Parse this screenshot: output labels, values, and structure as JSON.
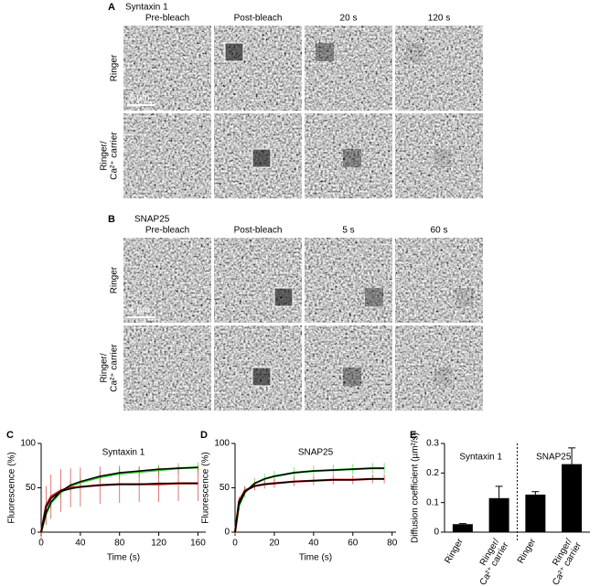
{
  "panels": [
    {
      "letter": "A",
      "protein": "Syntaxin 1",
      "columns": [
        "Pre-bleach",
        "Post-bleach",
        "20 s",
        "120 s"
      ],
      "rows": [
        [
          "Ringer"
        ],
        [
          "Ringer/",
          "Ca²⁺ carrier"
        ]
      ],
      "scale_bar": "4 µm"
    },
    {
      "letter": "B",
      "protein": "SNAP25",
      "columns": [
        "Pre-bleach",
        "Post-bleach",
        "5 s",
        "60 s"
      ],
      "rows": [
        [
          "Ringer"
        ],
        [
          "Ringer/",
          "Ca²⁺ carrier"
        ]
      ],
      "scale_bar": "4 µm"
    }
  ],
  "chart_data": [
    {
      "type": "line",
      "letter": "C",
      "title": "Syntaxin 1",
      "x_label": "Time (s)",
      "y_label": "Fluorescence (%)",
      "x": [
        0,
        5,
        10,
        20,
        30,
        40,
        60,
        80,
        100,
        120,
        140,
        160
      ],
      "series": [
        {
          "color": "#22cc22",
          "values": [
            0,
            20,
            33,
            45,
            52,
            56,
            62,
            66,
            68,
            70,
            72,
            73
          ],
          "errors": [
            3,
            5,
            6,
            6,
            6,
            6,
            6,
            6,
            6,
            6,
            6,
            6
          ]
        },
        {
          "color": "#cc1111",
          "values": [
            0,
            30,
            40,
            47,
            50,
            51,
            53,
            54,
            54,
            54,
            55,
            55
          ],
          "errors": [
            8,
            22,
            25,
            24,
            22,
            22,
            21,
            21,
            20,
            20,
            20,
            20
          ]
        },
        {
          "color": "#000000",
          "values": [
            0,
            22,
            34,
            46,
            53,
            57,
            63,
            67,
            69,
            71,
            72,
            73
          ]
        },
        {
          "color": "#000000",
          "values": [
            0,
            28,
            38,
            46,
            49,
            51,
            53,
            54,
            54,
            55,
            55,
            55
          ]
        }
      ],
      "xlim": [
        0,
        168
      ],
      "xticks": [
        0,
        40,
        80,
        120,
        160
      ],
      "ylim": [
        0,
        100
      ],
      "yticks": [
        0,
        50,
        100
      ]
    },
    {
      "type": "line",
      "letter": "D",
      "title": "SNAP25",
      "x_label": "Time (s)",
      "y_label": "Fluorescence (%)",
      "x": [
        0,
        2,
        5,
        10,
        15,
        20,
        30,
        40,
        50,
        60,
        70,
        76
      ],
      "series": [
        {
          "color": "#22cc22",
          "values": [
            0,
            30,
            45,
            55,
            60,
            63,
            67,
            69,
            70,
            71,
            72,
            72
          ],
          "errors": [
            3,
            6,
            6,
            6,
            6,
            6,
            6,
            6,
            6,
            6,
            6,
            6
          ]
        },
        {
          "color": "#cc1111",
          "values": [
            0,
            35,
            47,
            52,
            54,
            55,
            57,
            58,
            59,
            59,
            60,
            60
          ],
          "errors": [
            3,
            5,
            5,
            5,
            5,
            5,
            5,
            5,
            5,
            5,
            5,
            5
          ]
        },
        {
          "color": "#000000",
          "values": [
            0,
            31,
            45,
            55,
            60,
            63,
            67,
            69,
            70,
            71,
            72,
            72
          ]
        },
        {
          "color": "#000000",
          "values": [
            0,
            34,
            46,
            52,
            54,
            55,
            57,
            58,
            59,
            59,
            60,
            60
          ]
        }
      ],
      "xlim": [
        0,
        82
      ],
      "xticks": [
        0,
        20,
        40,
        60,
        80
      ],
      "ylim": [
        0,
        100
      ],
      "yticks": [
        0,
        50,
        100
      ]
    },
    {
      "type": "bar",
      "letter": "E",
      "y_label": "Diffusion coefficient (µm²/s)",
      "groups": [
        "Syntaxin 1",
        "SNAP25"
      ],
      "categories": [
        [
          "Ringer"
        ],
        [
          "Ringer/",
          "Ca²⁺ carrier"
        ],
        [
          "Ringer"
        ],
        [
          "Ringer/",
          "Ca²⁺ carrier"
        ]
      ],
      "values": [
        0.027,
        0.115,
        0.127,
        0.23
      ],
      "errors": [
        0.002,
        0.04,
        0.01,
        0.055
      ],
      "color": "#000000",
      "ylim": [
        0,
        0.3
      ],
      "yticks": [
        0,
        0.1,
        0.2,
        0.3
      ]
    }
  ]
}
